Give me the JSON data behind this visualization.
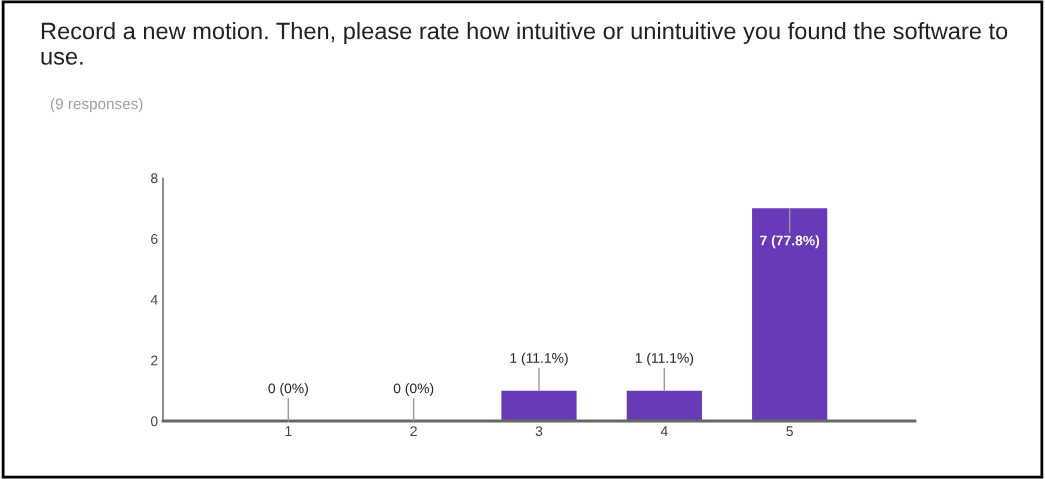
{
  "chart_data": {
    "type": "bar",
    "title": "Record a new motion. Then, please rate how intuitive or unintuitive you found the software to use.",
    "subtitle": "(9 responses)",
    "categories": [
      "1",
      "2",
      "3",
      "4",
      "5"
    ],
    "values": [
      0,
      0,
      1,
      1,
      7
    ],
    "value_labels": [
      "0 (0%)",
      "0 (0%)",
      "1 (11.1%)",
      "1 (11.1%)",
      "7 (77.8%)"
    ],
    "color": "#673ab7",
    "ylim": [
      0,
      8
    ],
    "yticks": [
      0,
      2,
      4,
      6,
      8
    ],
    "grid": false,
    "legend": false
  }
}
